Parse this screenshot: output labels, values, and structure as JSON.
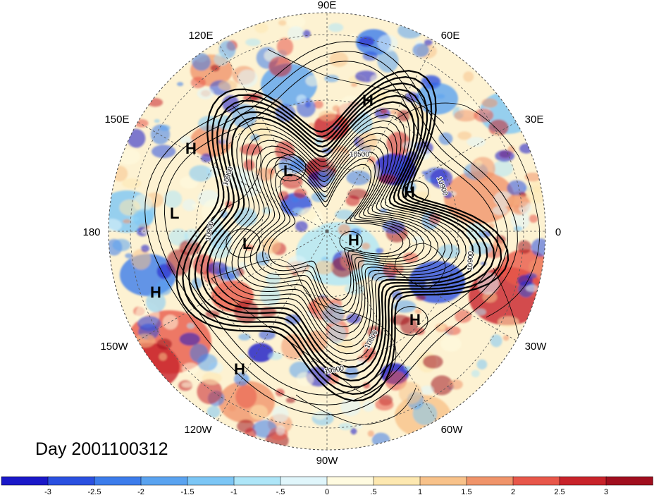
{
  "map": {
    "projection": "north-polar-stereographic",
    "field_colorscale": "blue-white-red",
    "contour_color": "#000000"
  },
  "longitude_labels": [
    "90E",
    "60E",
    "30E",
    "0",
    "30W",
    "60W",
    "90W",
    "120W",
    "150W",
    "180",
    "150E",
    "120E"
  ],
  "contour_labels": [
    "10500",
    "10900",
    "10900",
    "10900",
    "10900",
    "10900",
    "10800",
    "10900"
  ],
  "pressure_centers": [
    "H",
    "H",
    "L",
    "L",
    "H",
    "H",
    "L",
    "L",
    "H",
    "H",
    "H",
    "H"
  ],
  "day_label": "Day 2001100312",
  "colorbar": {
    "ticks": [
      "-3",
      "-2.5",
      "-2",
      "-1.5",
      "-1",
      "-.5",
      "0",
      ".5",
      "1",
      "1.5",
      "2",
      "2.5",
      "3"
    ],
    "colors": [
      "#1a18c8",
      "#2a50e0",
      "#3c7ceb",
      "#5aa3f0",
      "#7cc6f5",
      "#aee6f8",
      "#e0f6fb",
      "#fffbe0",
      "#fde8b0",
      "#f8c28a",
      "#f0946a",
      "#e8574a",
      "#c8232a",
      "#a00e1e"
    ]
  }
}
